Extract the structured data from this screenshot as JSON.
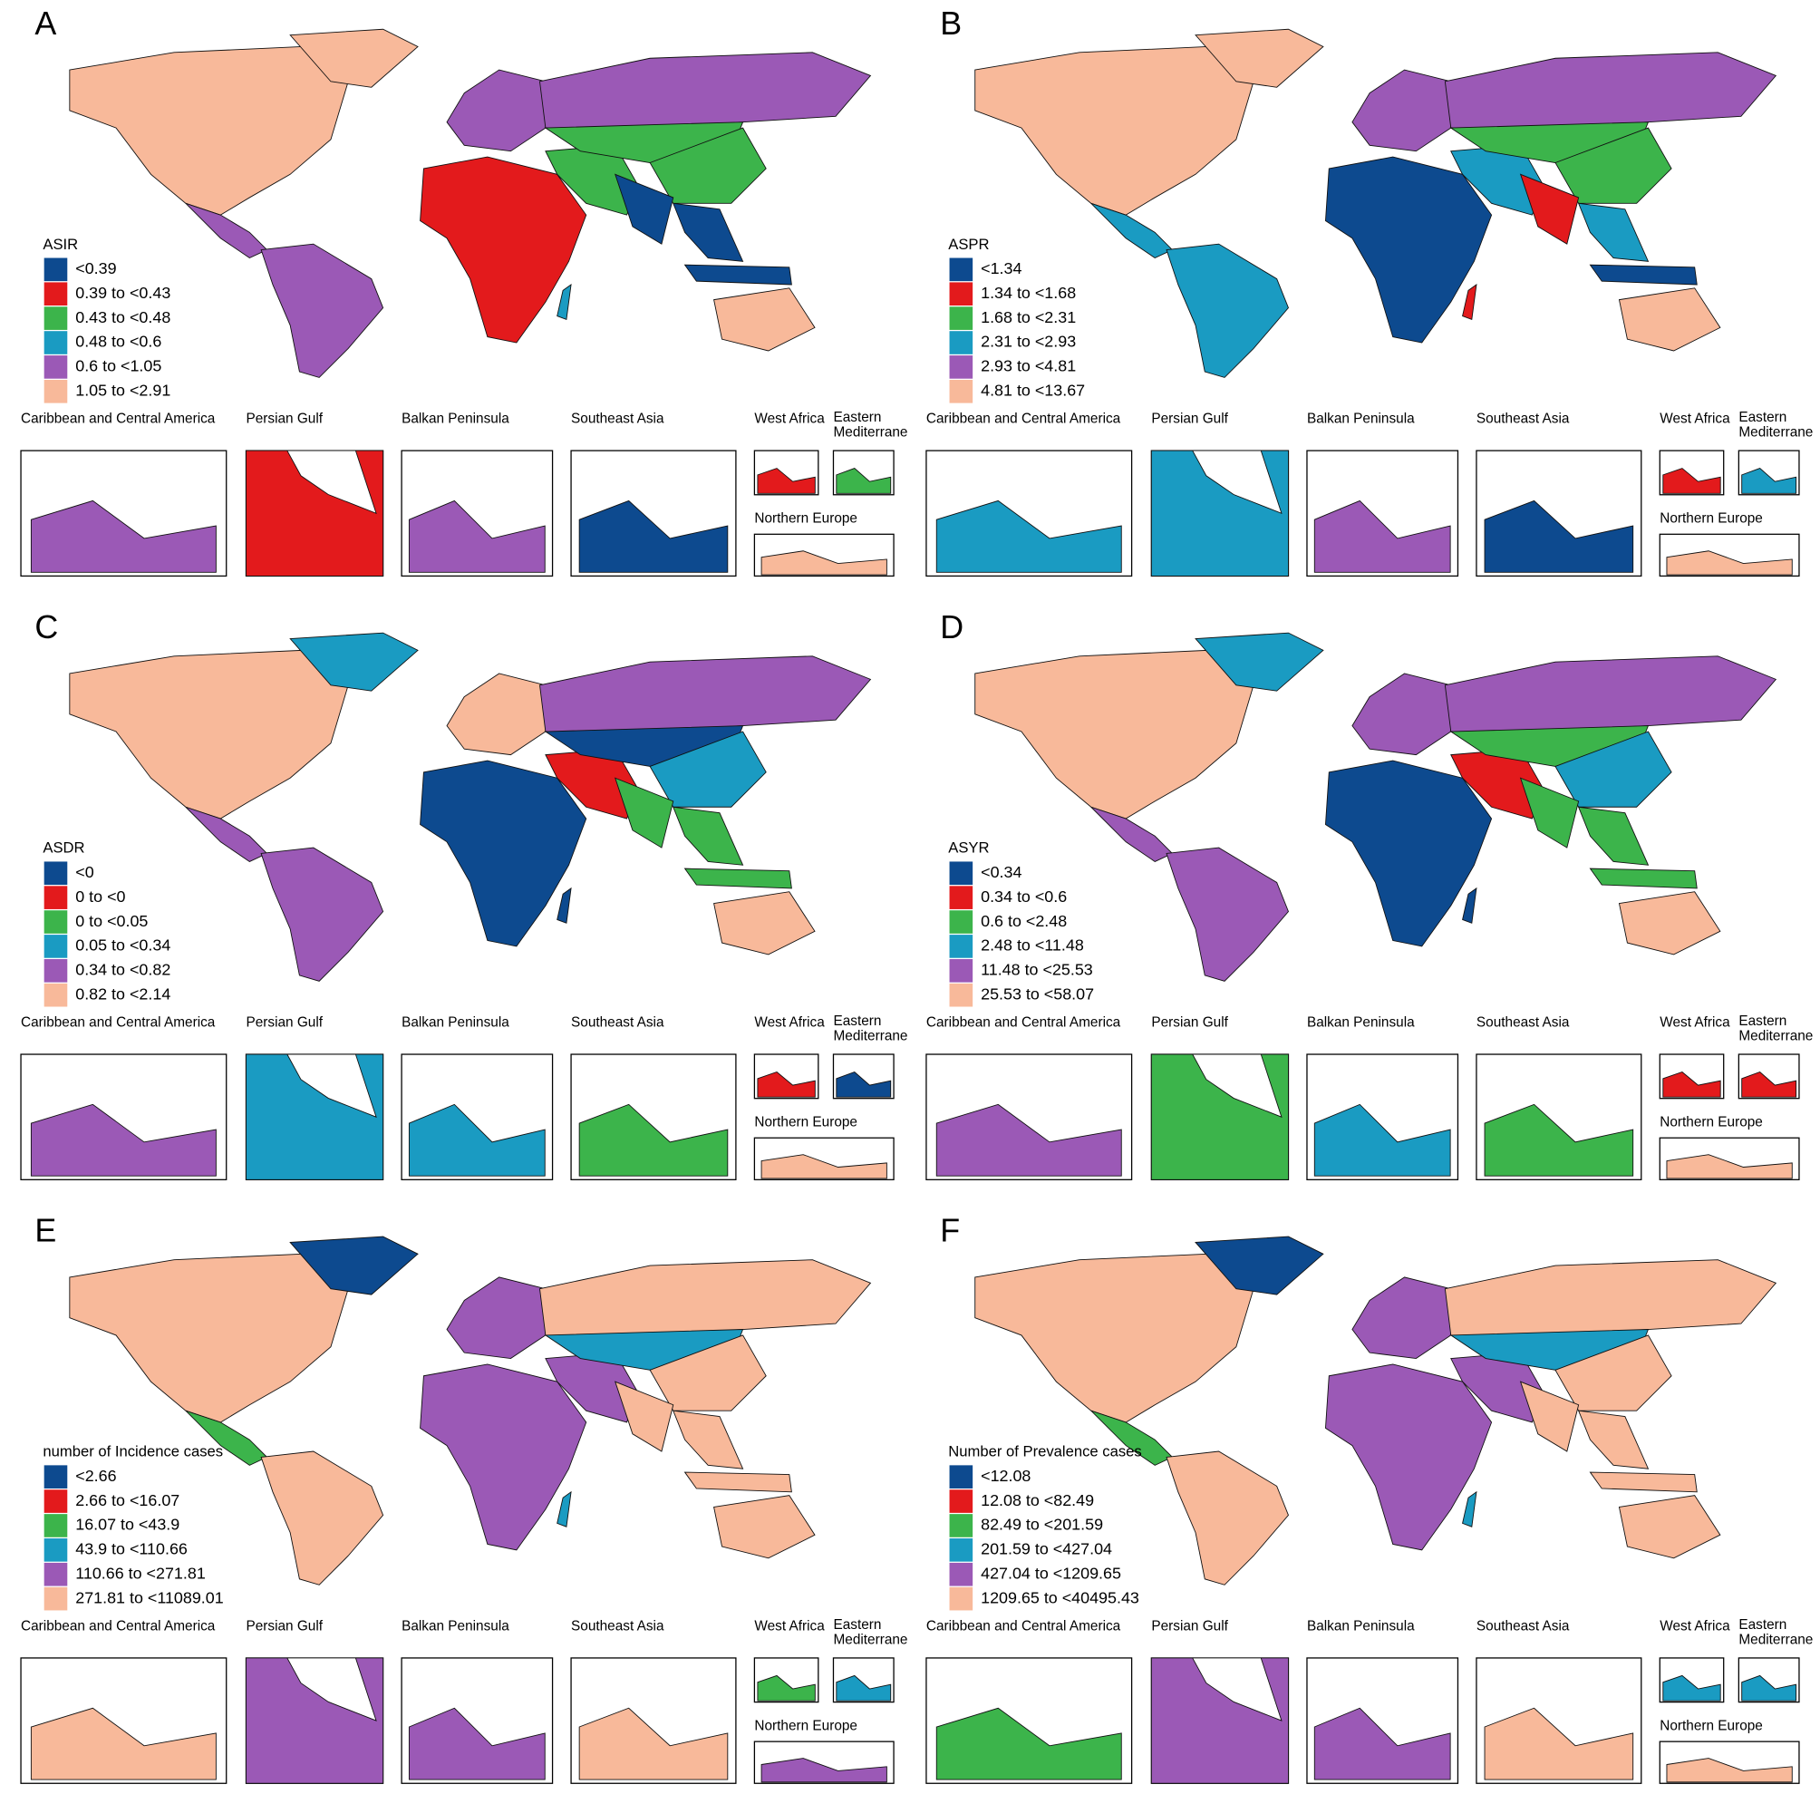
{
  "panels": [
    {
      "letter": "A",
      "legend": {
        "title": "ASIR",
        "items": [
          {
            "label": "<0.39",
            "color": "#0d4a8f"
          },
          {
            "label": "0.39 to <0.43",
            "color": "#e31a1c"
          },
          {
            "label": "0.43 to <0.48",
            "color": "#3cb44b"
          },
          {
            "label": "0.48 to <0.6",
            "color": "#1a9bc2"
          },
          {
            "label": "0.6 to <1.05",
            "color": "#9b59b6"
          },
          {
            "label": "1.05 to <2.91",
            "color": "#f8b99a"
          }
        ]
      },
      "insets": [
        "Caribbean and Central America",
        "Persian Gulf",
        "Balkan Peninsula",
        "Southeast Asia",
        "West Africa",
        "Eastern Mediterrane",
        "Northern Europe"
      ]
    },
    {
      "letter": "B",
      "legend": {
        "title": "ASPR",
        "items": [
          {
            "label": "<1.34",
            "color": "#0d4a8f"
          },
          {
            "label": "1.34 to <1.68",
            "color": "#e31a1c"
          },
          {
            "label": "1.68 to <2.31",
            "color": "#3cb44b"
          },
          {
            "label": "2.31 to <2.93",
            "color": "#1a9bc2"
          },
          {
            "label": "2.93 to <4.81",
            "color": "#9b59b6"
          },
          {
            "label": "4.81 to <13.67",
            "color": "#f8b99a"
          }
        ]
      },
      "insets": [
        "Caribbean and Central America",
        "Persian Gulf",
        "Balkan Peninsula",
        "Southeast Asia",
        "West Africa",
        "Eastern Mediterrane",
        "Northern Europe"
      ]
    },
    {
      "letter": "C",
      "legend": {
        "title": "ASDR",
        "items": [
          {
            "label": "<0",
            "color": "#0d4a8f"
          },
          {
            "label": "0 to <0",
            "color": "#e31a1c"
          },
          {
            "label": "0 to <0.05",
            "color": "#3cb44b"
          },
          {
            "label": "0.05 to <0.34",
            "color": "#1a9bc2"
          },
          {
            "label": "0.34 to <0.82",
            "color": "#9b59b6"
          },
          {
            "label": "0.82 to <2.14",
            "color": "#f8b99a"
          }
        ]
      },
      "insets": [
        "Caribbean and Central America",
        "Persian Gulf",
        "Balkan Peninsula",
        "Southeast Asia",
        "West Africa",
        "Eastern Mediterrane",
        "Northern Europe"
      ]
    },
    {
      "letter": "D",
      "legend": {
        "title": "ASYR",
        "items": [
          {
            "label": "<0.34",
            "color": "#0d4a8f"
          },
          {
            "label": "0.34 to <0.6",
            "color": "#e31a1c"
          },
          {
            "label": "0.6 to <2.48",
            "color": "#3cb44b"
          },
          {
            "label": "2.48 to <11.48",
            "color": "#1a9bc2"
          },
          {
            "label": "11.48 to <25.53",
            "color": "#9b59b6"
          },
          {
            "label": "25.53 to <58.07",
            "color": "#f8b99a"
          }
        ]
      },
      "insets": [
        "Caribbean and Central America",
        "Persian Gulf",
        "Balkan Peninsula",
        "Southeast Asia",
        "West Africa",
        "Eastern Mediterrane",
        "Northern Europe"
      ]
    },
    {
      "letter": "E",
      "legend": {
        "title": "number of Incidence cases",
        "items": [
          {
            "label": "<2.66",
            "color": "#0d4a8f"
          },
          {
            "label": "2.66 to <16.07",
            "color": "#e31a1c"
          },
          {
            "label": "16.07 to <43.9",
            "color": "#3cb44b"
          },
          {
            "label": "43.9 to <110.66",
            "color": "#1a9bc2"
          },
          {
            "label": "110.66 to <271.81",
            "color": "#9b59b6"
          },
          {
            "label": "271.81 to <11089.01",
            "color": "#f8b99a"
          }
        ]
      },
      "insets": [
        "Caribbean and Central America",
        "Persian Gulf",
        "Balkan Peninsula",
        "Southeast Asia",
        "West Africa",
        "Eastern Mediterrane",
        "Northern Europe"
      ]
    },
    {
      "letter": "F",
      "legend": {
        "title": "Number of Prevalence cases",
        "items": [
          {
            "label": "<12.08",
            "color": "#0d4a8f"
          },
          {
            "label": "12.08 to <82.49",
            "color": "#e31a1c"
          },
          {
            "label": "82.49 to <201.59",
            "color": "#3cb44b"
          },
          {
            "label": "201.59 to <427.04",
            "color": "#1a9bc2"
          },
          {
            "label": "427.04 to <1209.65",
            "color": "#9b59b6"
          },
          {
            "label": "1209.65 to <40495.43",
            "color": "#f8b99a"
          }
        ]
      },
      "insets": [
        "Caribbean and Central America",
        "Persian Gulf",
        "Balkan Peninsula",
        "Southeast Asia",
        "West Africa",
        "Eastern Mediterrane",
        "Northern Europe"
      ]
    }
  ]
}
